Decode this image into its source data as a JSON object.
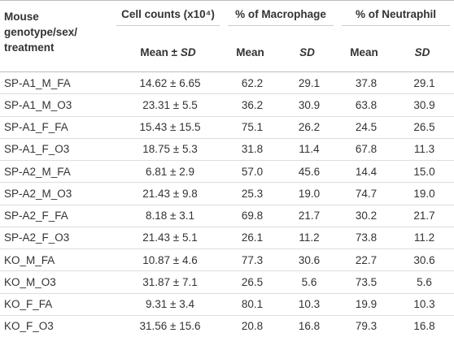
{
  "table": {
    "header": [
      "Mouse genotype/sex/ treatment",
      "Cell counts (x10⁴)",
      "% of Macrophage",
      "% of Neutraphil"
    ],
    "subheader": [
      "Mean ± SD",
      "Mean",
      "SD",
      "Mean",
      "SD"
    ],
    "rows": [
      [
        "SP-A1_M_FA",
        "14.62 ± 6.65",
        "62.2",
        "29.1",
        "37.8",
        "29.1"
      ],
      [
        "SP-A1_M_O3",
        "23.31 ± 5.5",
        "36.2",
        "30.9",
        "63.8",
        "30.9"
      ],
      [
        "SP-A1_F_FA",
        "15.43 ± 15.5",
        "75.1",
        "26.2",
        "24.5",
        "26.5"
      ],
      [
        "SP-A1_F_O3",
        "18.75 ± 5.3",
        "31.8",
        "11.4",
        "67.8",
        "11.3"
      ],
      [
        "SP-A2_M_FA",
        "6.81 ± 2.9",
        "57.0",
        "45.6",
        "14.4",
        "15.0"
      ],
      [
        "SP-A2_M_O3",
        "21.43 ± 9.8",
        "25.3",
        "19.0",
        "74.7",
        "19.0"
      ],
      [
        "SP-A2_F_FA",
        "8.18 ± 3.1",
        "69.8",
        "21.7",
        "30.2",
        "21.7"
      ],
      [
        "SP-A2_F_O3",
        "21.43 ± 5.1",
        "26.1",
        "11.2",
        "73.8",
        "11.2"
      ],
      [
        "KO_M_FA",
        "10.87 ± 4.6",
        "77.3",
        "30.6",
        "22.7",
        "30.6"
      ],
      [
        "KO_M_O3",
        "31.87 ± 7.1",
        "26.5",
        "5.6",
        "73.5",
        "5.6"
      ],
      [
        "KO_F_FA",
        "9.31 ± 3.4",
        "80.1",
        "10.3",
        "19.9",
        "10.3"
      ],
      [
        "KO_F_O3",
        "31.56 ± 15.6",
        "20.8",
        "16.8",
        "79.3",
        "16.8"
      ]
    ]
  }
}
